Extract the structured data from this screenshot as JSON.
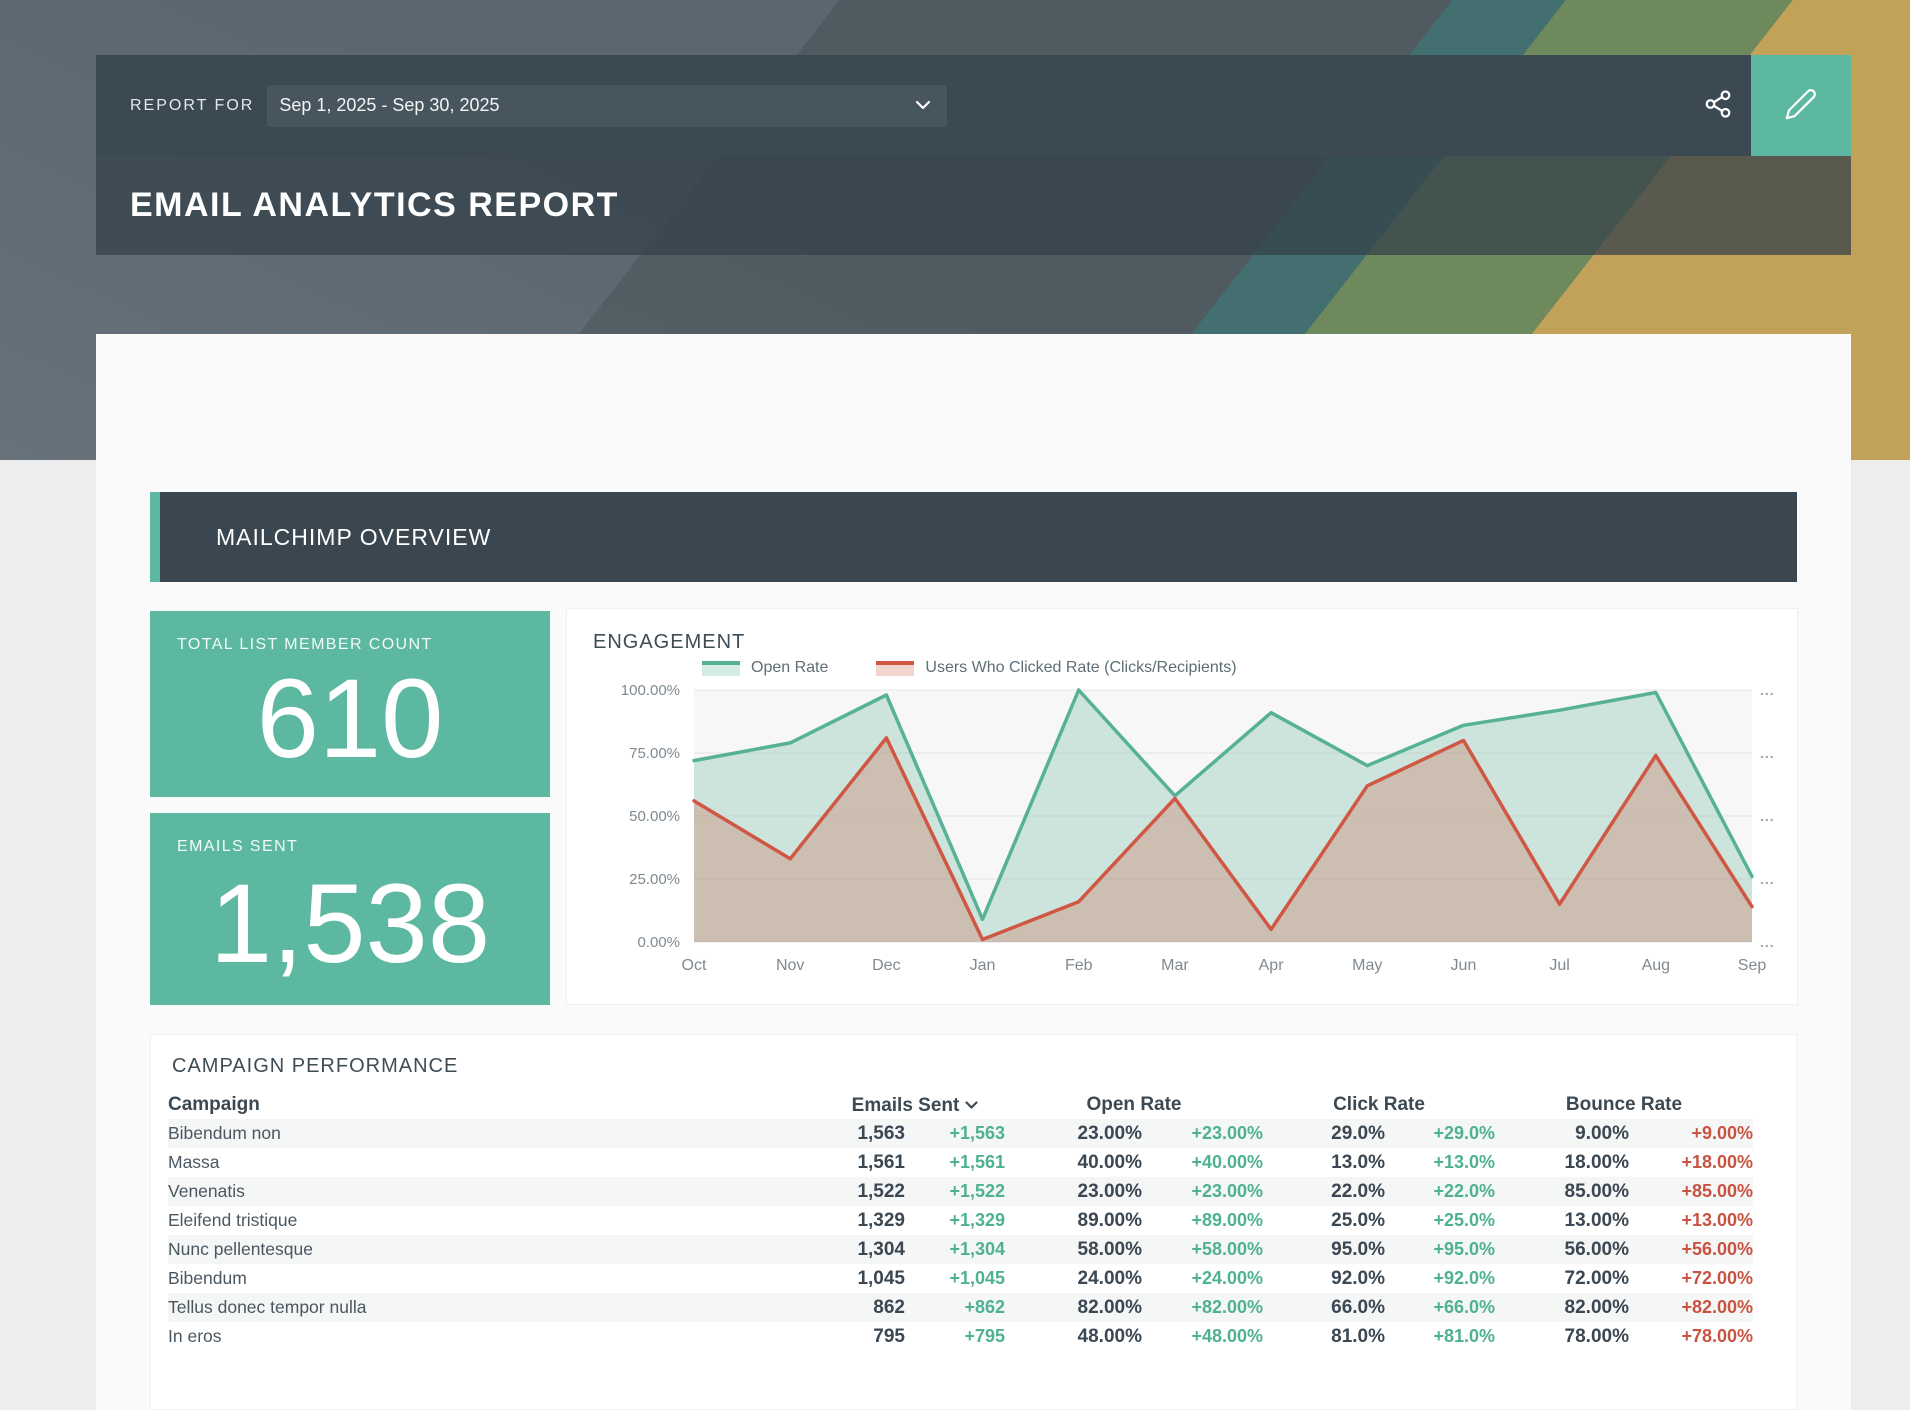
{
  "report_bar": {
    "label": "REPORT FOR",
    "date_range": "Sep 1, 2025 - Sep 30, 2025"
  },
  "page_title": "EMAIL ANALYTICS REPORT",
  "overview_section": {
    "title": "MAILCHIMP OVERVIEW"
  },
  "metrics": [
    {
      "label": "TOTAL LIST MEMBER COUNT",
      "value": "610"
    },
    {
      "label": "EMAILS SENT",
      "value": "1,538"
    }
  ],
  "chart_data": {
    "type": "area",
    "title": "ENGAGEMENT",
    "categories": [
      "Oct",
      "Nov",
      "Dec",
      "Jan",
      "Feb",
      "Mar",
      "Apr",
      "May",
      "Jun",
      "Jul",
      "Aug",
      "Sep"
    ],
    "series": [
      {
        "name": "Open Rate",
        "color": "#57b295",
        "values": [
          72,
          79,
          98,
          9,
          100,
          58,
          91,
          70,
          86,
          92,
          99,
          26
        ]
      },
      {
        "name": "Users Who Clicked Rate (Clicks/Recipients)",
        "color": "#cf5743",
        "values": [
          56,
          33,
          81,
          1,
          16,
          57,
          5,
          62,
          80,
          15,
          74,
          14
        ]
      }
    ],
    "ylim": [
      0,
      100
    ],
    "yticks": [
      "100.00%",
      "75.00%",
      "50.00%",
      "25.00%",
      "0.00%"
    ],
    "right_axis_labels": [
      "...",
      "...",
      "...",
      "...",
      "..."
    ],
    "legend_position": "top",
    "grid": true
  },
  "table": {
    "title": "CAMPAIGN PERFORMANCE",
    "name_column": "Campaign",
    "group_columns": [
      {
        "label": "Emails Sent",
        "sortable": true
      },
      {
        "label": "Open Rate"
      },
      {
        "label": "Click Rate"
      },
      {
        "label": "Bounce Rate"
      }
    ],
    "rows": [
      {
        "campaign": "Bibendum non",
        "sent": "1,563",
        "sent_delta": "+1,563",
        "open": "23.00%",
        "open_delta": "+23.00%",
        "click": "29.0%",
        "click_delta": "+29.0%",
        "bounce": "9.00%",
        "bounce_delta": "+9.00%"
      },
      {
        "campaign": "Massa",
        "sent": "1,561",
        "sent_delta": "+1,561",
        "open": "40.00%",
        "open_delta": "+40.00%",
        "click": "13.0%",
        "click_delta": "+13.0%",
        "bounce": "18.00%",
        "bounce_delta": "+18.00%"
      },
      {
        "campaign": "Venenatis",
        "sent": "1,522",
        "sent_delta": "+1,522",
        "open": "23.00%",
        "open_delta": "+23.00%",
        "click": "22.0%",
        "click_delta": "+22.0%",
        "bounce": "85.00%",
        "bounce_delta": "+85.00%"
      },
      {
        "campaign": "Eleifend tristique",
        "sent": "1,329",
        "sent_delta": "+1,329",
        "open": "89.00%",
        "open_delta": "+89.00%",
        "click": "25.0%",
        "click_delta": "+25.0%",
        "bounce": "13.00%",
        "bounce_delta": "+13.00%"
      },
      {
        "campaign": "Nunc pellentesque",
        "sent": "1,304",
        "sent_delta": "+1,304",
        "open": "58.00%",
        "open_delta": "+58.00%",
        "click": "95.0%",
        "click_delta": "+95.0%",
        "bounce": "56.00%",
        "bounce_delta": "+56.00%"
      },
      {
        "campaign": "Bibendum",
        "sent": "1,045",
        "sent_delta": "+1,045",
        "open": "24.00%",
        "open_delta": "+24.00%",
        "click": "92.0%",
        "click_delta": "+92.0%",
        "bounce": "72.00%",
        "bounce_delta": "+72.00%"
      },
      {
        "campaign": "Tellus donec tempor nulla",
        "sent": "862",
        "sent_delta": "+862",
        "open": "82.00%",
        "open_delta": "+82.00%",
        "click": "66.0%",
        "click_delta": "+66.0%",
        "bounce": "82.00%",
        "bounce_delta": "+82.00%"
      },
      {
        "campaign": "In eros",
        "sent": "795",
        "sent_delta": "+795",
        "open": "48.00%",
        "open_delta": "+48.00%",
        "click": "81.0%",
        "click_delta": "+81.0%",
        "bounce": "78.00%",
        "bounce_delta": "+78.00%"
      }
    ]
  },
  "colors": {
    "accent_teal": "#5cb8a0",
    "dark_slate": "#3b4952",
    "positive": "#4fb193",
    "negative": "#c95341",
    "gold": "#c2a158"
  }
}
